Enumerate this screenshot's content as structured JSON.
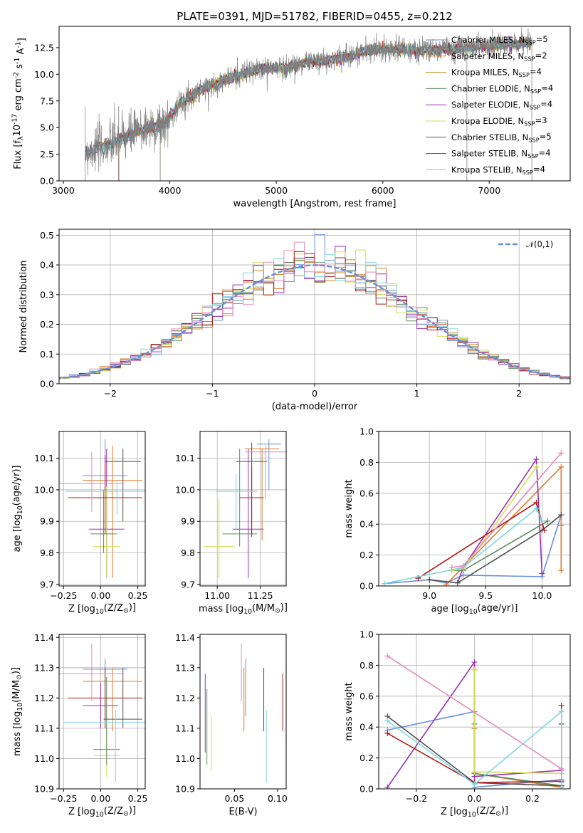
{
  "colors": [
    "#6a8fd8",
    "#e07b28",
    "#c78f29",
    "#5d8c63",
    "#9b2fb5",
    "#d2de55",
    "#505050",
    "#b01c1c",
    "#7fd6e0",
    "#e58ab8",
    "#7f7f7f"
  ],
  "chart_data": [
    {
      "id": "spectrum",
      "type": "line",
      "title": "PLATE=0391, MJD=51782, FIBERID=0455, z=0.212",
      "xlabel": "wavelength [Angstrom, rest frame]",
      "ylabel": "Flux [f$_\\lambda$10$^{-17}$ erg cm$^{-2}$ s$^{-1}$ A$^{-1}$]",
      "xlim": [
        2960,
        7760
      ],
      "ylim": [
        0,
        14.5
      ],
      "xticks": [
        3000,
        4000,
        5000,
        6000,
        7000
      ],
      "yticks": [
        0.0,
        2.5,
        5.0,
        7.5,
        10.0,
        12.5
      ],
      "wave_range": [
        3205,
        7400
      ],
      "continuum": {
        "x": [
          3205,
          3400,
          3600,
          3800,
          3950,
          4100,
          4300,
          4500,
          4700,
          4900,
          5100,
          5300,
          5500,
          5700,
          5900,
          6100,
          6300,
          6500,
          6700,
          6900,
          7100,
          7300,
          7400
        ],
        "y": [
          2.7,
          3.3,
          4.2,
          5.0,
          5.3,
          7.3,
          8.6,
          9.4,
          10.1,
          10.6,
          10.6,
          11.2,
          11.3,
          11.8,
          12.3,
          12.4,
          12.2,
          12.3,
          12.4,
          12.6,
          12.7,
          12.9,
          13.0
        ]
      },
      "legend": [
        "Chabrier MILES, N$_{SSP}$=5",
        "Salpeter MILES, N$_{SSP}$=2",
        "Kroupa MILES, N$_{SSP}$=4",
        "Chabrier ELODIE, N$_{SSP}$=4",
        "Salpeter ELODIE, N$_{SSP}$=4",
        "Kroupa ELODIE, N$_{SSP}$=3",
        "Chabrier STELIB, N$_{SSP}$=5",
        "Salpeter STELIB, N$_{SSP}$=4",
        "Kroupa STELIB, N$_{SSP}$=4"
      ],
      "legend_placement": "upper right"
    },
    {
      "id": "residuals",
      "type": "line",
      "xlabel": "(data-model)/error",
      "ylabel": "Normed distribution",
      "xlim": [
        -2.5,
        2.5
      ],
      "ylim": [
        0,
        0.52
      ],
      "xticks": [
        -2,
        -1,
        0,
        1,
        2
      ],
      "yticks": [
        0.0,
        0.1,
        0.2,
        0.3,
        0.4,
        0.5
      ],
      "grid": true,
      "legend": [
        "$\\mathcal{N}(0,1)$"
      ],
      "legend_placement": "upper right",
      "bin_width": 0.1
    },
    {
      "id": "age-vs-Z",
      "type": "scatter",
      "xlabel": "Z [log$_{10}$(Z/Z$_\\odot$)]",
      "ylabel": "age  [log$_{10}$(age/yr)]",
      "xlim": [
        -0.28,
        0.3
      ],
      "ylim": [
        9.695,
        10.185
      ],
      "xticks": [
        -0.25,
        0.0,
        0.25
      ],
      "yticks": [
        9.7,
        9.8,
        9.9,
        10.0,
        10.1
      ],
      "grid": true,
      "errorbars": [
        {
          "x": 0.03,
          "y": 10.045,
          "xerr": 0.15,
          "ylo": 9.99,
          "yhi": 10.16,
          "c": 0
        },
        {
          "x": 0.08,
          "y": 10.03,
          "xerr": 0.2,
          "ylo": 9.72,
          "yhi": 10.14,
          "c": 1
        },
        {
          "x": 0.04,
          "y": 9.875,
          "xerr": 0.12,
          "ylo": 9.72,
          "yhi": 10.13,
          "c": 4
        },
        {
          "x": 0.04,
          "y": 9.82,
          "xerr": 0.09,
          "ylo": 9.72,
          "yhi": 10.01,
          "c": 5
        },
        {
          "x": 0.02,
          "y": 9.86,
          "xerr": 0.09,
          "ylo": 9.8,
          "yhi": 10.0,
          "c": 3
        },
        {
          "x": 0.15,
          "y": 10.09,
          "xerr": 0.12,
          "ylo": 9.9,
          "yhi": 10.13,
          "c": 6
        },
        {
          "x": 0.03,
          "y": 9.975,
          "xerr": 0.25,
          "ylo": 9.86,
          "yhi": 10.11,
          "c": 7
        },
        {
          "x": -0.06,
          "y": 10.02,
          "xerr": 0.22,
          "ylo": 9.93,
          "yhi": 10.12,
          "c": 9
        },
        {
          "x": 0.11,
          "y": 9.995,
          "xerr": 0.35,
          "ylo": 9.92,
          "yhi": 10.03,
          "c": 8
        }
      ]
    },
    {
      "id": "age-vs-mass",
      "type": "scatter",
      "xlabel": "mass [log$_{10}$(M/M$_\\odot$)]",
      "ylabel": "",
      "xlim": [
        10.9,
        11.4
      ],
      "ylim": [
        9.695,
        10.185
      ],
      "xticks": [
        11.0,
        11.25
      ],
      "yticks": [
        9.7,
        9.8,
        9.9,
        10.0,
        10.1
      ],
      "grid": true,
      "errorbars": [
        {
          "x": 11.3,
          "y": 10.145,
          "xerr": 0.07,
          "ylo": 10.0,
          "yhi": 10.16,
          "c": 0
        },
        {
          "x": 11.26,
          "y": 10.13,
          "xerr": 0.1,
          "ylo": 9.84,
          "yhi": 10.13,
          "c": 1
        },
        {
          "x": 11.18,
          "y": 9.875,
          "xerr": 0.09,
          "ylo": 9.72,
          "yhi": 10.13,
          "c": 4
        },
        {
          "x": 11.01,
          "y": 9.82,
          "xerr": 0.09,
          "ylo": 9.72,
          "yhi": 9.97,
          "c": 5
        },
        {
          "x": 11.13,
          "y": 9.86,
          "xerr": 0.1,
          "ylo": 9.82,
          "yhi": 10.13,
          "c": 3
        },
        {
          "x": 11.2,
          "y": 10.09,
          "xerr": 0.09,
          "ylo": 9.85,
          "yhi": 10.15,
          "c": 6
        },
        {
          "x": 11.2,
          "y": 9.975,
          "xerr": 0.07,
          "ylo": 9.86,
          "yhi": 10.08,
          "c": 7
        },
        {
          "x": 11.28,
          "y": 10.12,
          "xerr": 0.12,
          "ylo": 9.97,
          "yhi": 10.14,
          "c": 9
        },
        {
          "x": 11.11,
          "y": 9.995,
          "xerr": 0.12,
          "ylo": 9.87,
          "yhi": 10.05,
          "c": 8
        }
      ]
    },
    {
      "id": "weight-vs-age",
      "type": "line",
      "xlabel": "age  [log$_{10}$(age/yr)]",
      "ylabel": "mass weight",
      "xlim": [
        8.55,
        10.25
      ],
      "ylim": [
        0,
        1.0
      ],
      "xticks": [
        9.0,
        9.5,
        10.0
      ],
      "yticks": [
        0.0,
        0.2,
        0.4,
        0.6,
        0.8,
        1.0
      ],
      "grid": true,
      "series": [
        {
          "c": 0,
          "x": [
            8.6,
            9.0,
            9.15,
            9.3,
            10.0,
            10.17
          ],
          "y": [
            0.015,
            0.04,
            0.02,
            0.07,
            0.06,
            0.46
          ]
        },
        {
          "c": 1,
          "x": [
            9.15,
            10.17,
            10.17,
            10.17
          ],
          "y": [
            0.01,
            0.77,
            0.39,
            0.1
          ]
        },
        {
          "c": 3,
          "x": [
            9.2,
            9.3,
            10.05
          ],
          "y": [
            0.1,
            0.1,
            0.42
          ]
        },
        {
          "c": 4,
          "x": [
            9.25,
            9.3,
            9.95,
            10.0
          ],
          "y": [
            0.02,
            0.12,
            0.82,
            0.08
          ]
        },
        {
          "c": 5,
          "x": [
            9.2,
            9.3,
            9.95
          ],
          "y": [
            0.1,
            0.11,
            0.77
          ]
        },
        {
          "c": 6,
          "x": [
            9.0,
            9.25,
            10.0,
            10.17
          ],
          "y": [
            0.04,
            0.02,
            0.36,
            0.46
          ]
        },
        {
          "c": 7,
          "x": [
            8.9,
            9.95,
            10.02
          ],
          "y": [
            0.05,
            0.54,
            0.36
          ]
        },
        {
          "c": 8,
          "x": [
            8.6,
            9.3,
            9.95,
            10.0
          ],
          "y": [
            0.015,
            0.12,
            0.5,
            0.42
          ]
        },
        {
          "c": 9,
          "x": [
            9.2,
            9.3,
            10.17
          ],
          "y": [
            0.12,
            0.13,
            0.86
          ]
        }
      ]
    },
    {
      "id": "mass-vs-Z",
      "type": "scatter",
      "xlabel": "Z [log$_{10}$(Z/Z$_\\odot$)]",
      "ylabel": "mass [log$_{10}$(M/M$_\\odot$)]",
      "xlim": [
        -0.28,
        0.3
      ],
      "ylim": [
        10.9,
        11.41
      ],
      "xticks": [
        -0.25,
        0.0,
        0.25
      ],
      "yticks": [
        10.9,
        11.0,
        11.1,
        11.2,
        11.3,
        11.4
      ],
      "grid": true,
      "errorbars": [
        {
          "x": 0.03,
          "y": 11.295,
          "xerr": 0.15,
          "ylo": 11.13,
          "yhi": 11.33,
          "c": 0
        },
        {
          "x": 0.08,
          "y": 11.255,
          "xerr": 0.2,
          "ylo": 11.09,
          "yhi": 11.3,
          "c": 1
        },
        {
          "x": 0.0,
          "y": 11.175,
          "xerr": 0.12,
          "ylo": 11.1,
          "yhi": 11.25,
          "c": 4
        },
        {
          "x": 0.04,
          "y": 11.01,
          "xerr": 0.09,
          "ylo": 10.94,
          "yhi": 11.13,
          "c": 5
        },
        {
          "x": 0.04,
          "y": 11.03,
          "xerr": 0.09,
          "ylo": 10.98,
          "yhi": 11.27,
          "c": 3
        },
        {
          "x": 0.15,
          "y": 11.13,
          "xerr": 0.13,
          "ylo": 11.1,
          "yhi": 11.3,
          "c": 6
        },
        {
          "x": 0.03,
          "y": 11.2,
          "xerr": 0.25,
          "ylo": 11.1,
          "yhi": 11.3,
          "c": 7
        },
        {
          "x": -0.06,
          "y": 11.28,
          "xerr": 0.22,
          "ylo": 11.19,
          "yhi": 11.38,
          "c": 9
        },
        {
          "x": 0.1,
          "y": 11.12,
          "xerr": 0.35,
          "ylo": 10.92,
          "yhi": 11.16,
          "c": 8
        }
      ]
    },
    {
      "id": "mass-vs-EBV",
      "type": "scatter",
      "xlabel": "E(B-V)",
      "ylabel": "",
      "xlim": [
        0.01,
        0.11
      ],
      "ylim": [
        10.9,
        11.41
      ],
      "xticks": [
        0.05,
        0.1
      ],
      "yticks": [
        10.9,
        11.0,
        11.1,
        11.2,
        11.3,
        11.4
      ],
      "grid": false,
      "vbars": [
        {
          "x": 0.016,
          "ylo": 11.02,
          "yhi": 11.28,
          "c": 4
        },
        {
          "x": 0.018,
          "ylo": 10.98,
          "yhi": 11.23,
          "c": 3
        },
        {
          "x": 0.023,
          "ylo": 10.96,
          "yhi": 11.14,
          "c": 5
        },
        {
          "x": 0.058,
          "ylo": 11.19,
          "yhi": 11.38,
          "c": 9
        },
        {
          "x": 0.061,
          "ylo": 11.09,
          "yhi": 11.3,
          "c": 1
        },
        {
          "x": 0.063,
          "ylo": 11.14,
          "yhi": 11.33,
          "c": 0
        },
        {
          "x": 0.084,
          "ylo": 11.09,
          "yhi": 11.3,
          "c": 6
        },
        {
          "x": 0.087,
          "ylo": 10.92,
          "yhi": 11.16,
          "c": 8
        },
        {
          "x": 0.106,
          "ylo": 11.09,
          "yhi": 11.28,
          "c": 7
        }
      ]
    },
    {
      "id": "weight-vs-Z",
      "type": "line",
      "xlabel": "Z [log$_{10}$(Z/Z$_\\odot$)]",
      "ylabel": "mass weight",
      "xlim": [
        -0.33,
        0.33
      ],
      "ylim": [
        0,
        1.0
      ],
      "xticks": [
        -0.2,
        0.0,
        0.2
      ],
      "yticks": [
        0.0,
        0.2,
        0.4,
        0.6,
        0.8,
        1.0
      ],
      "grid": true,
      "series": [
        {
          "c": 0,
          "x": [
            -0.3,
            0.0,
            0.0,
            0.3,
            0.3
          ],
          "y": [
            0.38,
            0.5,
            0.01,
            0.06,
            0.04
          ]
        },
        {
          "c": 1,
          "x": [
            0.0,
            0.0,
            0.0,
            0.3
          ],
          "y": [
            0.77,
            0.39,
            0.1,
            0.01
          ]
        },
        {
          "c": 3,
          "x": [
            0.0,
            0.0,
            0.3,
            0.3
          ],
          "y": [
            0.42,
            0.1,
            0.02,
            0.1
          ]
        },
        {
          "c": 4,
          "x": [
            -0.3,
            0.0,
            0.0,
            0.3
          ],
          "y": [
            0.01,
            0.82,
            0.08,
            0.12
          ]
        },
        {
          "c": 5,
          "x": [
            0.0,
            0.0,
            0.3
          ],
          "y": [
            0.77,
            0.11,
            0.1
          ]
        },
        {
          "c": 6,
          "x": [
            -0.3,
            0.0,
            0.3,
            0.3
          ],
          "y": [
            0.47,
            0.04,
            0.02,
            0.42
          ]
        },
        {
          "c": 7,
          "x": [
            -0.3,
            0.0,
            0.3,
            0.3
          ],
          "y": [
            0.36,
            0.04,
            0.05,
            0.54
          ]
        },
        {
          "c": 8,
          "x": [
            -0.3,
            0.0,
            0.3,
            0.3
          ],
          "y": [
            0.44,
            0.03,
            0.5,
            0.01
          ]
        },
        {
          "c": 9,
          "x": [
            -0.3,
            0.3
          ],
          "y": [
            0.86,
            0.13
          ]
        }
      ]
    }
  ]
}
